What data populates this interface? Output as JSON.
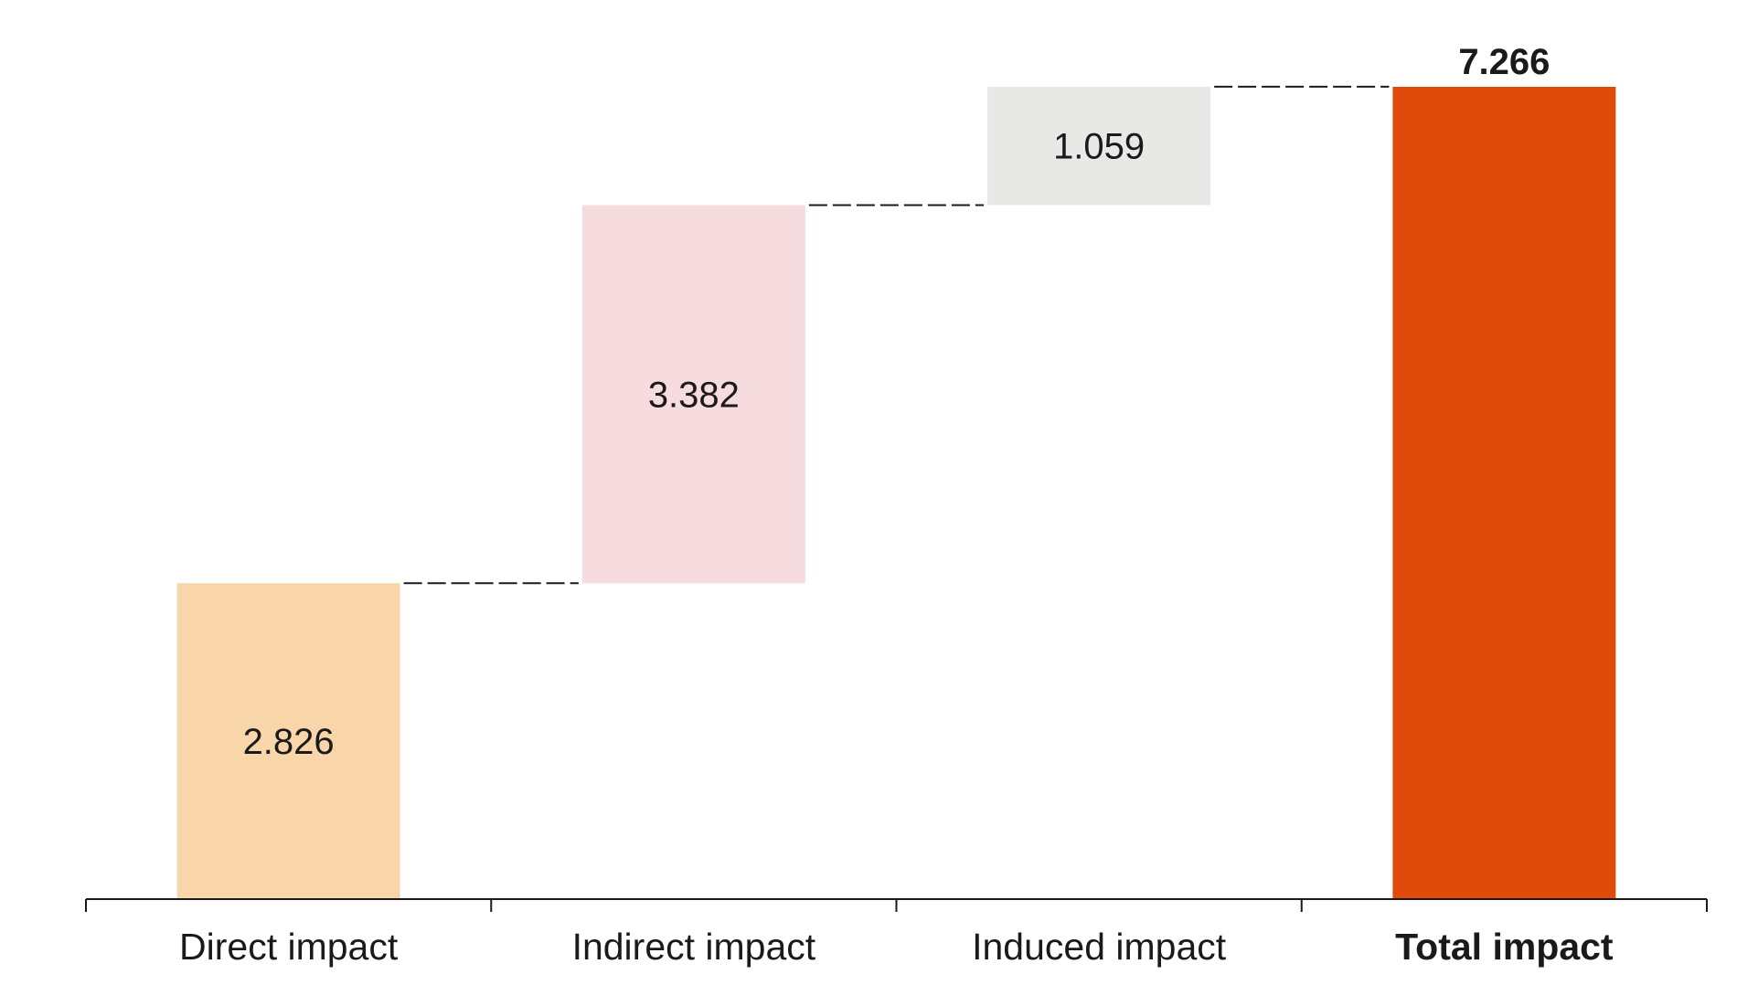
{
  "chart_data": {
    "type": "bar",
    "subtype": "waterfall",
    "categories": [
      "Direct impact",
      "Indirect impact",
      "Induced impact",
      "Total impact"
    ],
    "values": [
      2.826,
      3.382,
      1.059,
      7.266
    ],
    "value_labels": [
      "2.826",
      "3.382",
      "1.059",
      "7.266"
    ],
    "is_total": [
      false,
      false,
      false,
      true
    ],
    "colors": [
      "#F9D5AA",
      "#F7DCDF",
      "#E8E8E6",
      "#E04A0B"
    ],
    "connector_color": "#1a1a1a",
    "axis_color": "#1a1a1a",
    "title": "",
    "xlabel": "",
    "ylabel": "",
    "ylim": [
      0,
      7.266
    ],
    "grid": false,
    "legend": "none"
  }
}
